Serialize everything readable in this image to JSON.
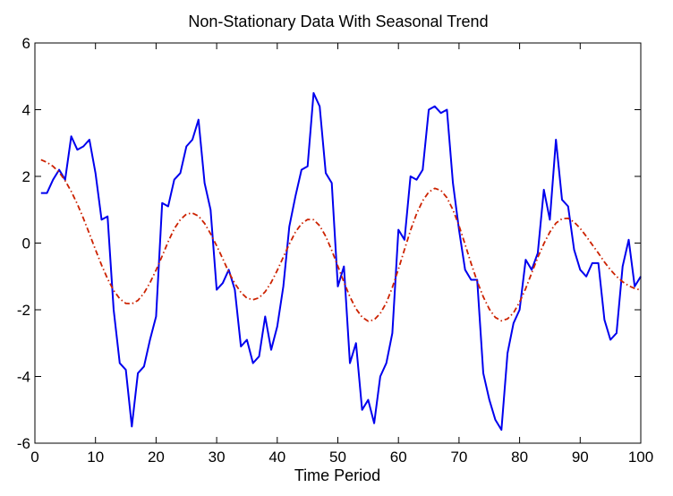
{
  "chart_data": {
    "type": "line",
    "title": "Non-Stationary Data With Seasonal Trend",
    "xlabel": "Time Period",
    "ylabel": "",
    "xlim": [
      0,
      100
    ],
    "ylim": [
      -6,
      6
    ],
    "xticks": [
      "0",
      "10",
      "20",
      "30",
      "40",
      "50",
      "60",
      "70",
      "80",
      "90",
      "100"
    ],
    "yticks": [
      "-6",
      "-4",
      "-2",
      "0",
      "2",
      "4",
      "6"
    ],
    "grid": false,
    "series": [
      {
        "color": "#0000ee",
        "style": "solid",
        "x": [
          1,
          2,
          3,
          4,
          5,
          6,
          7,
          8,
          9,
          10,
          11,
          12,
          13,
          14,
          15,
          16,
          17,
          18,
          19,
          20,
          21,
          22,
          23,
          24,
          25,
          26,
          27,
          28,
          29,
          30,
          31,
          32,
          33,
          34,
          35,
          36,
          37,
          38,
          39,
          40,
          41,
          42,
          43,
          44,
          45,
          46,
          47,
          48,
          49,
          50,
          51,
          52,
          53,
          54,
          55,
          56,
          57,
          58,
          59,
          60,
          61,
          62,
          63,
          64,
          65,
          66,
          67,
          68,
          69,
          70,
          71,
          72,
          73,
          74,
          75,
          76,
          77,
          78,
          79,
          80,
          81,
          82,
          83,
          84,
          85,
          86,
          87,
          88,
          89,
          90,
          91,
          92,
          93,
          94,
          95,
          96,
          97,
          98,
          99,
          100
        ],
        "values": [
          1.5,
          1.5,
          1.9,
          2.2,
          1.9,
          3.2,
          2.8,
          2.9,
          3.1,
          2.1,
          0.7,
          0.8,
          -2.0,
          -3.6,
          -3.8,
          -5.5,
          -3.9,
          -3.7,
          -2.9,
          -2.2,
          1.2,
          1.1,
          1.9,
          2.1,
          2.9,
          3.1,
          3.7,
          1.8,
          1.0,
          -1.4,
          -1.2,
          -0.8,
          -1.4,
          -3.1,
          -2.9,
          -3.6,
          -3.4,
          -2.2,
          -3.2,
          -2.5,
          -1.3,
          0.5,
          1.4,
          2.2,
          2.3,
          4.5,
          4.1,
          2.1,
          1.8,
          -1.3,
          -0.7,
          -3.6,
          -3.0,
          -5.0,
          -4.7,
          -5.4,
          -4.0,
          -3.6,
          -2.7,
          0.4,
          0.1,
          2.0,
          1.9,
          2.2,
          4.0,
          4.1,
          3.9,
          4.0,
          1.8,
          0.4,
          -0.8,
          -1.1,
          -1.1,
          -3.9,
          -4.7,
          -5.3,
          -5.6,
          -3.3,
          -2.4,
          -2.0,
          -0.5,
          -0.8,
          -0.3,
          1.6,
          0.7,
          3.1,
          1.3,
          1.1,
          -0.2,
          -0.8,
          -1.0,
          -0.6,
          -0.6,
          -2.3,
          -2.9,
          -2.7,
          -0.7,
          0.1,
          -1.3,
          -1.0
        ]
      },
      {
        "color": "#cc2200",
        "style": "dashdot",
        "x": [
          1,
          2,
          3,
          4,
          5,
          6,
          7,
          8,
          9,
          10,
          11,
          12,
          13,
          14,
          15,
          16,
          17,
          18,
          19,
          20,
          21,
          22,
          23,
          24,
          25,
          26,
          27,
          28,
          29,
          30,
          31,
          32,
          33,
          34,
          35,
          36,
          37,
          38,
          39,
          40,
          41,
          42,
          43,
          44,
          45,
          46,
          47,
          48,
          49,
          50,
          51,
          52,
          53,
          54,
          55,
          56,
          57,
          58,
          59,
          60,
          61,
          62,
          63,
          64,
          65,
          66,
          67,
          68,
          69,
          70,
          71,
          72,
          73,
          74,
          75,
          76,
          77,
          78,
          79,
          80,
          81,
          82,
          83,
          84,
          85,
          86,
          87,
          88,
          89,
          90,
          91,
          92,
          93,
          94,
          95,
          96,
          97,
          98,
          99,
          100
        ],
        "values": [
          2.5,
          2.42,
          2.3,
          2.12,
          1.87,
          1.55,
          1.17,
          0.74,
          0.28,
          -0.2,
          -0.66,
          -1.07,
          -1.42,
          -1.67,
          -1.81,
          -1.82,
          -1.72,
          -1.5,
          -1.19,
          -0.81,
          -0.39,
          0.04,
          0.43,
          0.7,
          0.87,
          0.9,
          0.81,
          0.59,
          0.28,
          -0.08,
          -0.47,
          -0.87,
          -1.21,
          -1.48,
          -1.65,
          -1.7,
          -1.64,
          -1.46,
          -1.18,
          -0.82,
          -0.42,
          -0.03,
          0.33,
          0.58,
          0.71,
          0.7,
          0.52,
          0.2,
          -0.22,
          -0.69,
          -1.17,
          -1.61,
          -1.97,
          -2.22,
          -2.34,
          -2.3,
          -2.11,
          -1.79,
          -1.33,
          -0.78,
          -0.19,
          0.38,
          0.88,
          1.27,
          1.53,
          1.64,
          1.58,
          1.36,
          1.0,
          0.52,
          -0.04,
          -0.61,
          -1.15,
          -1.61,
          -1.98,
          -2.23,
          -2.33,
          -2.27,
          -2.09,
          -1.77,
          -1.36,
          -0.9,
          -0.43,
          -0.02,
          0.33,
          0.6,
          0.73,
          0.74,
          0.63,
          0.44,
          0.2,
          -0.05,
          -0.3,
          -0.57,
          -0.8,
          -1.0,
          -1.16,
          -1.28,
          -1.36,
          -1.41
        ]
      }
    ]
  }
}
